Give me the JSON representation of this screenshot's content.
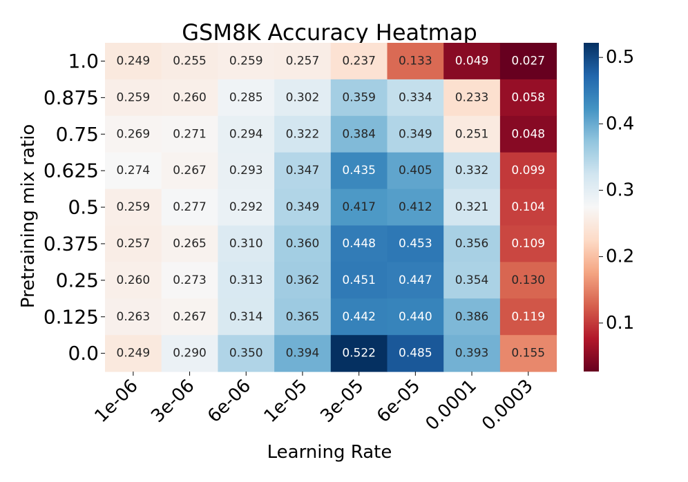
{
  "chart_data": {
    "type": "heatmap",
    "title": "GSM8K Accuracy Heatmap",
    "xlabel": "Learning Rate",
    "ylabel": "Pretraining mix ratio",
    "x_categories": [
      "1e-06",
      "3e-06",
      "6e-06",
      "1e-05",
      "3e-05",
      "6e-05",
      "0.0001",
      "0.0003"
    ],
    "y_categories": [
      "1.0",
      "0.875",
      "0.75",
      "0.625",
      "0.5",
      "0.375",
      "0.25",
      "0.125",
      "0.0"
    ],
    "values": [
      [
        0.249,
        0.255,
        0.259,
        0.257,
        0.237,
        0.133,
        0.049,
        0.027
      ],
      [
        0.259,
        0.26,
        0.285,
        0.302,
        0.359,
        0.334,
        0.233,
        0.058
      ],
      [
        0.269,
        0.271,
        0.294,
        0.322,
        0.384,
        0.349,
        0.251,
        0.048
      ],
      [
        0.274,
        0.267,
        0.293,
        0.347,
        0.435,
        0.405,
        0.332,
        0.099
      ],
      [
        0.259,
        0.277,
        0.292,
        0.349,
        0.417,
        0.412,
        0.321,
        0.104
      ],
      [
        0.257,
        0.265,
        0.31,
        0.36,
        0.448,
        0.453,
        0.356,
        0.109
      ],
      [
        0.26,
        0.273,
        0.313,
        0.362,
        0.451,
        0.447,
        0.354,
        0.13
      ],
      [
        0.263,
        0.267,
        0.314,
        0.365,
        0.442,
        0.44,
        0.386,
        0.119
      ],
      [
        0.249,
        0.29,
        0.35,
        0.394,
        0.522,
        0.485,
        0.393,
        0.155
      ]
    ],
    "colormap": "RdBu",
    "vmin": 0.027,
    "vmax": 0.522,
    "colorbar_ticks": [
      0.1,
      0.2,
      0.3,
      0.4,
      0.5
    ],
    "colorbar_tick_labels": [
      "0.1",
      "0.2",
      "0.3",
      "0.4",
      "0.5"
    ]
  }
}
